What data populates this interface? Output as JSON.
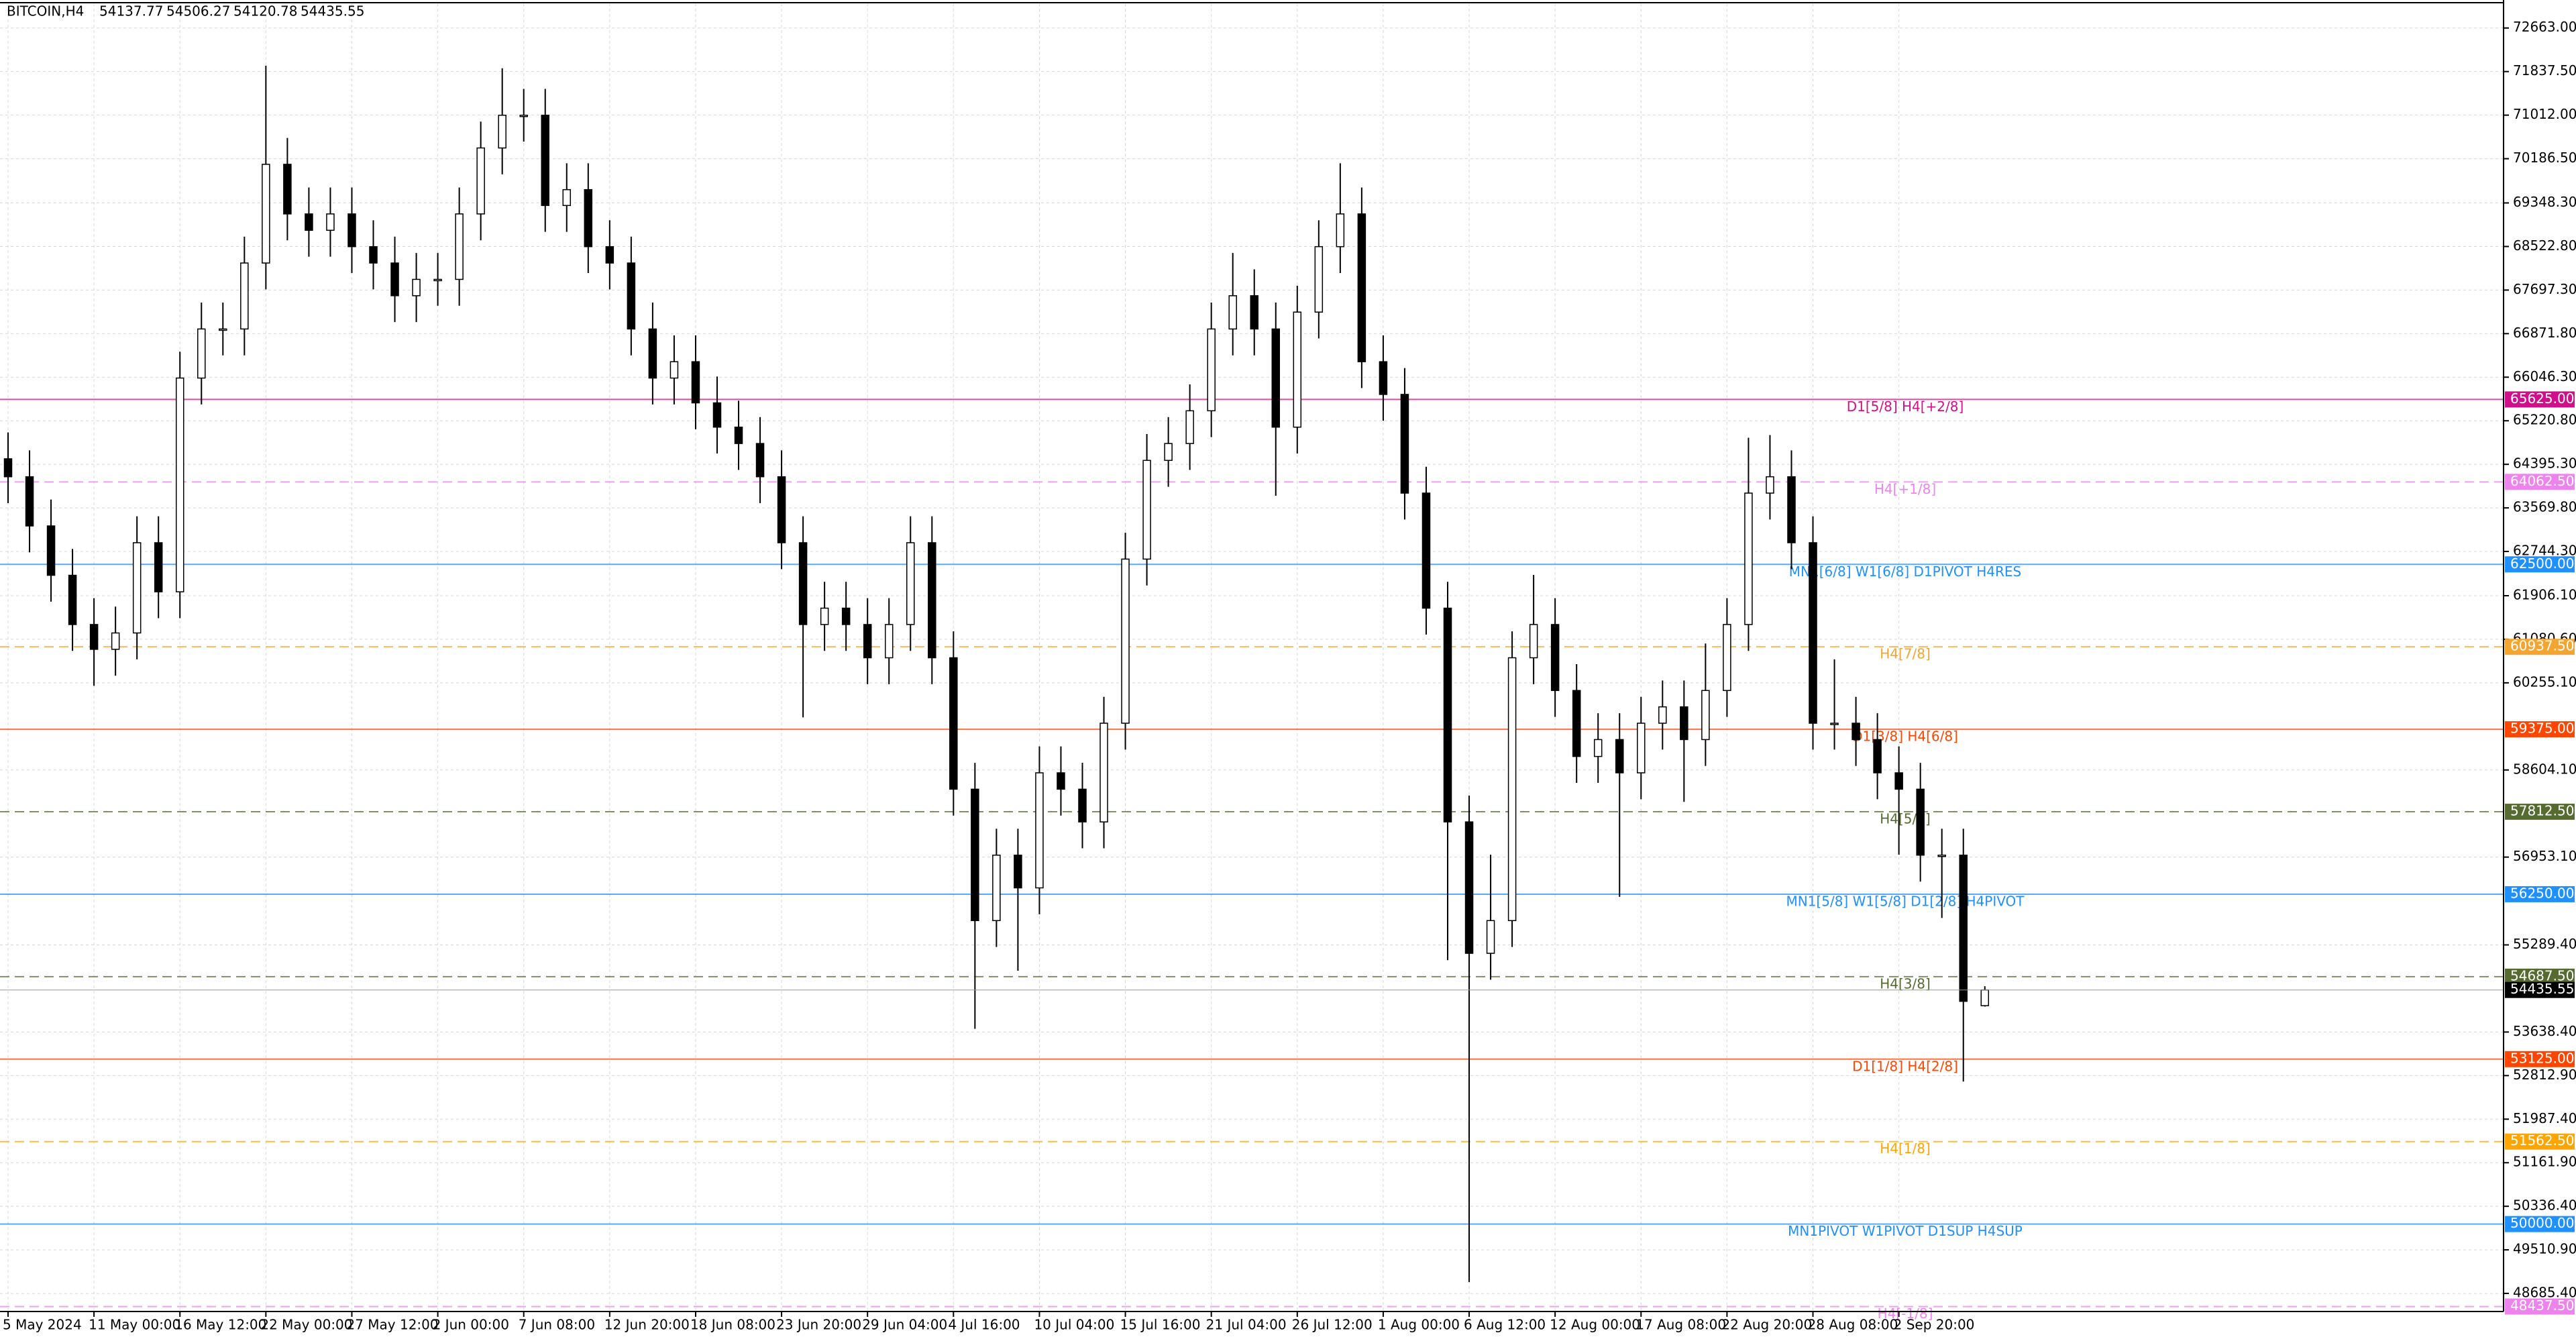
{
  "chart_data": {
    "type": "candlestick",
    "title": "BITCOIN,H4",
    "categories": [
      "5 May 2024",
      null,
      null,
      null,
      "11 May 00:00",
      null,
      null,
      null,
      "16 May 12:00",
      null,
      null,
      null,
      "22 May 00:00",
      null,
      null,
      null,
      "27 May 12:00",
      null,
      null,
      null,
      "2 Jun 00:00",
      null,
      null,
      null,
      "7 Jun 08:00",
      null,
      null,
      null,
      "12 Jun 20:00",
      null,
      null,
      null,
      "18 Jun 08:00",
      null,
      null,
      null,
      "23 Jun 20:00",
      null,
      null,
      null,
      "29 Jun 04:00",
      null,
      null,
      null,
      "4 Jul 16:00",
      null,
      null,
      null,
      "10 Jul 04:00",
      null,
      null,
      null,
      "15 Jul 16:00",
      null,
      null,
      null,
      "21 Jul 04:00",
      null,
      null,
      null,
      "26 Jul 12:00",
      null,
      null,
      null,
      "1 Aug 00:00",
      null,
      null,
      null,
      "6 Aug 12:00",
      null,
      null,
      null,
      "12 Aug 00:00",
      null,
      null,
      null,
      "17 Aug 08:00",
      null,
      null,
      null,
      "22 Aug 20:00",
      null,
      null,
      null,
      "28 Aug 08:00",
      null,
      null,
      null,
      "2 Sep 20:00",
      null,
      null,
      null,
      null
    ],
    "series": {
      "open": [
        64500,
        64160,
        63228,
        62293,
        61360,
        60890,
        61200,
        62910,
        61980,
        66030,
        66960,
        66960,
        68210,
        70080,
        69140,
        68830,
        69140,
        68520,
        68210,
        67590,
        67900,
        67900,
        69140,
        70390,
        71010,
        71010,
        69300,
        69600,
        68520,
        68210,
        66960,
        66030,
        66340,
        65560,
        65100,
        64790,
        64160,
        62910,
        61360,
        61670,
        61360,
        60730,
        61360,
        62910,
        60730,
        58240,
        55750,
        56990,
        56370,
        58550,
        58240,
        57620,
        59490,
        62600,
        64470,
        64790,
        65410,
        66960,
        67590,
        66960,
        65100,
        67280,
        68520,
        69140,
        66340,
        65720,
        63850,
        61670,
        57620,
        55130,
        55750,
        60730,
        61360,
        60110,
        58860,
        59180,
        58550,
        59490,
        59800,
        59180,
        60110,
        61360,
        63850,
        64160,
        62910,
        59490,
        59490,
        59180,
        58550,
        58240,
        56990,
        56990,
        54137.77
      ],
      "high": [
        65000,
        64660,
        63728,
        62793,
        61860,
        61700,
        63410,
        63410,
        66530,
        67460,
        67460,
        68710,
        71950,
        70580,
        69640,
        69640,
        69640,
        69020,
        68710,
        68400,
        68400,
        69640,
        70890,
        71900,
        71510,
        71510,
        70100,
        70100,
        69020,
        68710,
        67460,
        66840,
        66840,
        66060,
        65600,
        65290,
        64660,
        63410,
        62170,
        62170,
        61860,
        61860,
        63410,
        63410,
        61230,
        58740,
        57490,
        57490,
        59050,
        59050,
        58740,
        59990,
        63100,
        64970,
        65290,
        65910,
        67460,
        68400,
        68090,
        67460,
        67780,
        69020,
        70100,
        69640,
        66840,
        66220,
        64350,
        62170,
        58120,
        57000,
        61230,
        62300,
        61860,
        60610,
        59680,
        59680,
        59990,
        60300,
        60300,
        61000,
        61860,
        64900,
        64950,
        64660,
        63410,
        60700,
        59990,
        59680,
        59050,
        58740,
        57490,
        57490,
        54506.27
      ],
      "low": [
        63660,
        62728,
        61793,
        60860,
        60200,
        60390,
        60700,
        61480,
        61480,
        65530,
        66460,
        66460,
        67710,
        68640,
        68330,
        68330,
        68020,
        67710,
        67090,
        67090,
        67400,
        67400,
        68640,
        69890,
        70510,
        68800,
        68800,
        68020,
        67710,
        66460,
        65530,
        65530,
        65060,
        64600,
        64290,
        63660,
        62410,
        59600,
        60860,
        60860,
        60230,
        60230,
        60860,
        60230,
        57740,
        53700,
        55250,
        54800,
        55870,
        57740,
        57120,
        57120,
        58990,
        62100,
        63970,
        64290,
        64910,
        66460,
        66460,
        63800,
        64600,
        66780,
        68020,
        65840,
        65220,
        63350,
        61170,
        55000,
        48900,
        54630,
        55250,
        60230,
        59610,
        58360,
        58360,
        56200,
        58050,
        58990,
        58000,
        58680,
        59610,
        60860,
        63350,
        62410,
        58990,
        58990,
        58680,
        58050,
        57000,
        56490,
        55800,
        52700,
        54120.78
      ],
      "close": [
        64160,
        63228,
        62293,
        61360,
        60890,
        61200,
        62910,
        61980,
        66030,
        66960,
        66960,
        68210,
        70080,
        69140,
        68830,
        69140,
        68520,
        68210,
        67590,
        67900,
        67900,
        69140,
        70390,
        71010,
        71010,
        69300,
        69600,
        68520,
        68210,
        66960,
        66030,
        66340,
        65560,
        65100,
        64790,
        64160,
        62910,
        61360,
        61670,
        61360,
        60730,
        61360,
        62910,
        60730,
        58240,
        55750,
        56990,
        56370,
        58550,
        58240,
        57620,
        59490,
        62600,
        64470,
        64790,
        65410,
        66960,
        67590,
        66960,
        65100,
        67280,
        68520,
        69140,
        66340,
        65720,
        63850,
        61670,
        57620,
        55130,
        55750,
        60730,
        61360,
        60110,
        58860,
        59180,
        58550,
        59490,
        59800,
        59180,
        60110,
        61360,
        63850,
        64160,
        62910,
        59490,
        59490,
        59180,
        58550,
        58240,
        56990,
        56990,
        54220,
        54435.55
      ]
    },
    "color_up": "#ffffff",
    "color_down": "#000000",
    "wick_color": "#000000",
    "ylim": [
      48343,
      73130
    ],
    "yticks": [
      {
        "value": 72663,
        "label": "72663.00"
      },
      {
        "value": 71837.5,
        "label": "71837.50"
      },
      {
        "value": 71012,
        "label": "71012.00"
      },
      {
        "value": 70186.5,
        "label": "70186.50"
      },
      {
        "value": 69348.3,
        "label": "69348.30"
      },
      {
        "value": 68522.8,
        "label": "68522.80"
      },
      {
        "value": 67697.3,
        "label": "67697.30"
      },
      {
        "value": 66871.8,
        "label": "66871.80"
      },
      {
        "value": 66046.3,
        "label": "66046.30"
      },
      {
        "value": 65220.8,
        "label": "65220.80"
      },
      {
        "value": 64395.3,
        "label": "64395.30"
      },
      {
        "value": 63569.8,
        "label": "63569.80"
      },
      {
        "value": 62744.3,
        "label": "62744.30"
      },
      {
        "value": 61906.1,
        "label": "61906.10"
      },
      {
        "value": 61080.6,
        "label": "61080.60"
      },
      {
        "value": 60255.1,
        "label": "60255.10"
      },
      {
        "value": 58604.1,
        "label": "58604.10"
      },
      {
        "value": 56953.1,
        "label": "56953.10"
      },
      {
        "value": 55289.4,
        "label": "55289.40"
      },
      {
        "value": 53638.4,
        "label": "53638.40"
      },
      {
        "value": 52812.9,
        "label": "52812.90"
      },
      {
        "value": 51987.4,
        "label": "51987.40"
      },
      {
        "value": 51161.9,
        "label": "51161.90"
      },
      {
        "value": 50336.4,
        "label": "50336.40"
      },
      {
        "value": 49510.9,
        "label": "49510.90"
      },
      {
        "value": 48685.4,
        "label": "48685.40"
      }
    ],
    "grid": true,
    "levels": [
      {
        "name": "D1[5/8] H4[+2/8]",
        "value": 65625,
        "label": "65625.00",
        "color": "#d0108a",
        "dash": false
      },
      {
        "name": "H4[+1/8]",
        "value": 64062.5,
        "label": "64062.50",
        "color": "#ee82ee",
        "dash": true
      },
      {
        "name": "MN1[6/8] W1[6/8] D1PIVOT H4RES",
        "value": 62500,
        "label": "62500.00",
        "color": "#1e90ff",
        "dash": false
      },
      {
        "name": "H4[7/8]",
        "value": 60937.5,
        "label": "60937.50",
        "color": "#f4a430",
        "dash": true
      },
      {
        "name": "D1[3/8] H4[6/8]",
        "value": 59375,
        "label": "59375.00",
        "color": "#ff4500",
        "dash": false
      },
      {
        "name": "H4[5/8]",
        "value": 57812.5,
        "label": "57812.50",
        "color": "#556b2f",
        "dash": true
      },
      {
        "name": "MN1[5/8] W1[5/8] D1[2/8] H4PIVOT",
        "value": 56250,
        "label": "56250.00",
        "color": "#1e90ff",
        "dash": false
      },
      {
        "name": "H4[3/8]",
        "value": 54687.5,
        "label": "54687.50",
        "color": "#556b2f",
        "dash": true
      },
      {
        "name": "D1[1/8] H4[2/8]",
        "value": 53125,
        "label": "53125.00",
        "color": "#ff4500",
        "dash": false
      },
      {
        "name": "H4[1/8]",
        "value": 51562.5,
        "label": "51562.50",
        "color": "#ffa500",
        "dash": true
      },
      {
        "name": "MN1PIVOT W1PIVOT D1SUP H4SUP",
        "value": 50000,
        "label": "50000.00",
        "color": "#1e90ff",
        "dash": false
      },
      {
        "name": "H4[-1/8]",
        "value": 48437.5,
        "label": "48437.50",
        "color": "#ee82ee",
        "dash": true
      }
    ]
  }
}
